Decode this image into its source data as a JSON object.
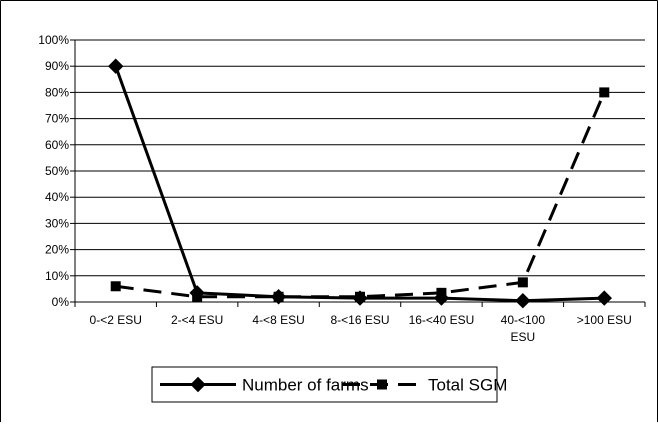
{
  "chart_data": {
    "type": "line",
    "title": "",
    "xlabel": "",
    "ylabel": "",
    "categories": [
      [
        "0-<2 ESU"
      ],
      [
        "2-<4 ESU"
      ],
      [
        "4-<8 ESU"
      ],
      [
        "8-<16 ESU"
      ],
      [
        "16-<40 ESU"
      ],
      [
        "40-<100",
        "ESU"
      ],
      [
        ">100 ESU"
      ]
    ],
    "ylim": [
      0,
      100
    ],
    "yticks": [
      "0%",
      "10%",
      "20%",
      "30%",
      "40%",
      "50%",
      "60%",
      "70%",
      "80%",
      "90%",
      "100%"
    ],
    "grid": true,
    "legend_position": "bottom",
    "series": [
      {
        "name": "Number of farms",
        "values": [
          90,
          3.5,
          2,
          1.5,
          1.5,
          0.5,
          1.5
        ],
        "marker": "diamond",
        "dash": "solid",
        "color": "#000000"
      },
      {
        "name": "Total SGM",
        "values": [
          6,
          2,
          2,
          2,
          3.5,
          7.5,
          80
        ],
        "marker": "square",
        "dash": "dashed",
        "color": "#000000"
      }
    ]
  }
}
